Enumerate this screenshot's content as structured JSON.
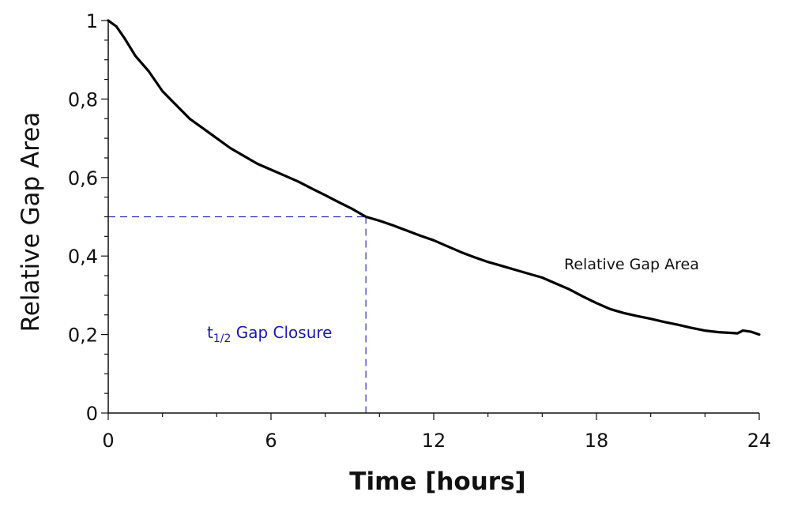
{
  "chart_data": {
    "type": "line",
    "title": "",
    "xlabel": "Time [hours]",
    "ylabel": "Relative Gap Area",
    "xlim": [
      0,
      24
    ],
    "ylim": [
      0,
      1
    ],
    "x_ticks": [
      0,
      6,
      12,
      18,
      24
    ],
    "x_tick_labels": [
      "0",
      "6",
      "12",
      "18",
      "24"
    ],
    "x_minor_step": 2,
    "y_ticks": [
      0,
      0.2,
      0.4,
      0.6,
      0.8,
      1
    ],
    "y_tick_labels": [
      "0",
      "0,2",
      "0,4",
      "0,6",
      "0,8",
      "1"
    ],
    "y_minor_step": 0.05,
    "grid": false,
    "legend": "none",
    "series": [
      {
        "name": "Relative Gap Area",
        "color": "#000000",
        "x": [
          0,
          0.3,
          0.6,
          1,
          1.5,
          2,
          2.5,
          3,
          3.5,
          4,
          4.5,
          5,
          5.5,
          6,
          6.5,
          7,
          7.5,
          8,
          8.5,
          9,
          9.5,
          10,
          10.5,
          11,
          11.5,
          12,
          12.5,
          13,
          13.5,
          14,
          14.5,
          15,
          15.5,
          16,
          16.5,
          17,
          17.5,
          18,
          18.5,
          19,
          19.5,
          20,
          20.5,
          21,
          21.5,
          22,
          22.5,
          23,
          23.2,
          23.4,
          23.7,
          24
        ],
        "y": [
          1.0,
          0.985,
          0.955,
          0.91,
          0.87,
          0.82,
          0.785,
          0.75,
          0.725,
          0.7,
          0.675,
          0.655,
          0.635,
          0.62,
          0.605,
          0.59,
          0.572,
          0.555,
          0.537,
          0.52,
          0.5,
          0.49,
          0.478,
          0.465,
          0.452,
          0.44,
          0.425,
          0.41,
          0.397,
          0.385,
          0.375,
          0.365,
          0.355,
          0.345,
          0.33,
          0.315,
          0.297,
          0.28,
          0.265,
          0.255,
          0.247,
          0.24,
          0.232,
          0.225,
          0.217,
          0.21,
          0.206,
          0.204,
          0.203,
          0.21,
          0.207,
          0.2
        ]
      }
    ],
    "annotations": [
      {
        "text": "Relative Gap Area",
        "x": 16.9,
        "y": 0.38,
        "color": "#000000"
      },
      {
        "text_main": "t",
        "text_sub": "1/2",
        "text_rest": " Gap Closure",
        "x": 3.7,
        "y": 0.2,
        "color": "#1a1ab0"
      }
    ],
    "reference_lines": {
      "color": "#2b2bb0",
      "style": "dashed",
      "half_value": 0.5,
      "half_time": 9.5
    }
  },
  "labels": {
    "xlabel": "Time [hours]",
    "ylabel": "Relative Gap Area",
    "series_label": "Relative Gap Area",
    "t_half_main": "t",
    "t_half_sub": "1/2",
    "t_half_rest": " Gap Closure"
  }
}
